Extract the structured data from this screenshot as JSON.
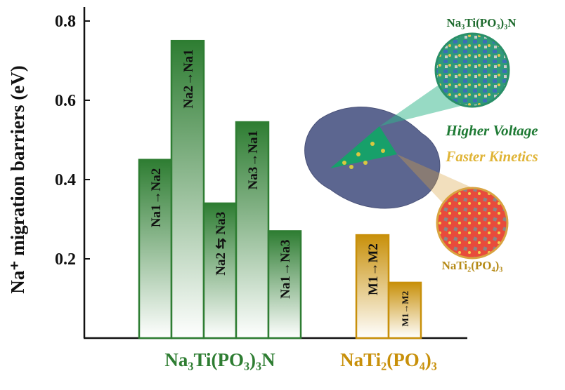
{
  "chart_data": {
    "type": "bar",
    "ylabel": "Na⁺ migration barriers (eV)",
    "ylim": [
      0,
      0.83
    ],
    "yticks": [
      0.2,
      0.4,
      0.6,
      0.8
    ],
    "series": [
      {
        "name": "Na₃Ti(PO₃)₃N",
        "color": "#2e7d32",
        "categories": [
          "Na1→Na2",
          "Na2→Na1",
          "Na2 ⇆ Na3",
          "Na3→Na1",
          "Na1→Na3"
        ],
        "values": [
          0.45,
          0.75,
          0.34,
          0.545,
          0.27
        ]
      },
      {
        "name": "NaTi₂(PO₄)₃",
        "color": "#c8900a",
        "categories": [
          "M1→M2",
          "M1→M2"
        ],
        "values": [
          0.26,
          0.14
        ]
      }
    ],
    "annotations": [
      "Na₃Ti(PO₃)₃N",
      "Higher Voltage",
      "Faster Kinetics",
      "NaTi₂(PO₄)₃"
    ]
  }
}
